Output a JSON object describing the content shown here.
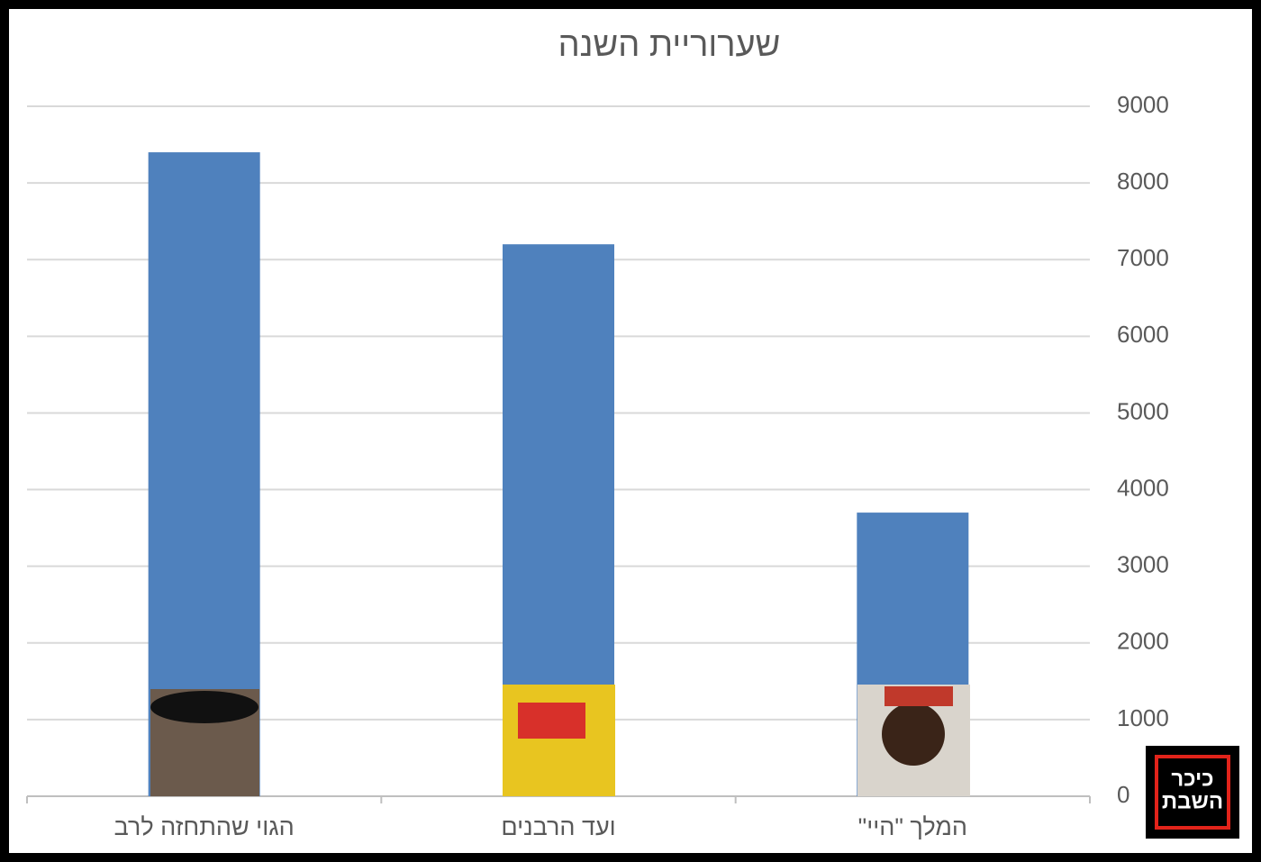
{
  "chart_data": {
    "type": "bar",
    "title": "שערוריית השנה",
    "categories": [
      "המלך \"היי\"",
      "ועד הרבנים",
      "הגוי שהתחזה לרב"
    ],
    "values": [
      3700,
      7200,
      8400
    ],
    "color": "#4f81bd",
    "ylim": [
      0,
      9000
    ],
    "yticks": [
      0,
      1000,
      2000,
      3000,
      4000,
      5000,
      6000,
      7000,
      8000,
      9000
    ],
    "grid": true,
    "reverse_x": true
  },
  "logo": {
    "lines": [
      "כיכר",
      "השבת"
    ]
  }
}
